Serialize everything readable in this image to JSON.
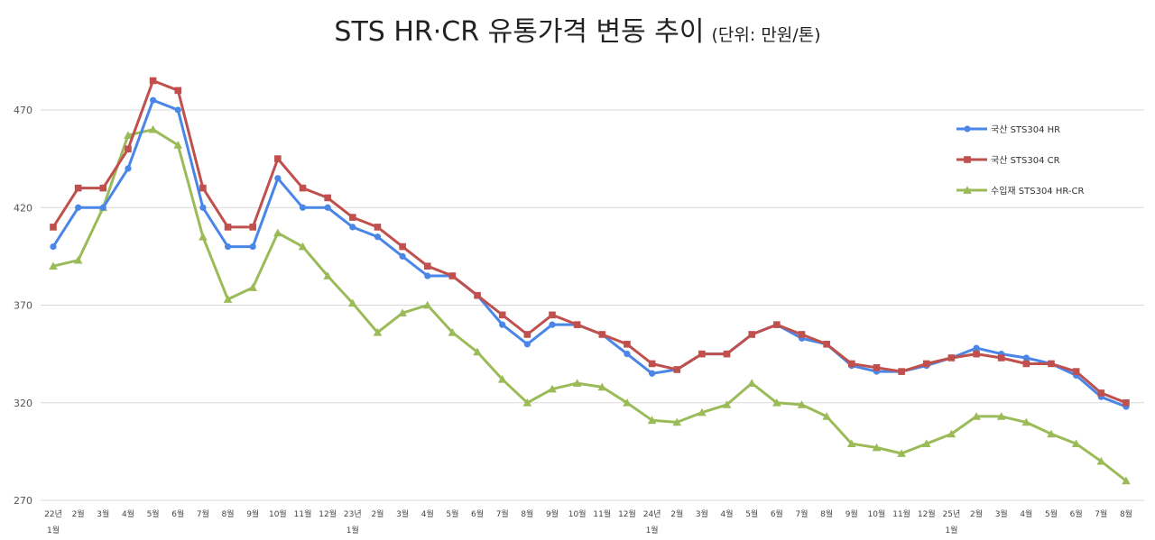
{
  "chart_data": {
    "type": "line",
    "title": "STS HR·CR 유통가격 변동 추이",
    "subtitle": "(단위: 만원/톤)",
    "ylim": [
      270,
      470
    ],
    "yticks": [
      270,
      320,
      370,
      420,
      470
    ],
    "grid": true,
    "legend_position": "right",
    "categories": [
      [
        "22년",
        "1월"
      ],
      [
        "2월"
      ],
      [
        "3월"
      ],
      [
        "4월"
      ],
      [
        "5월"
      ],
      [
        "6월"
      ],
      [
        "7월"
      ],
      [
        "8월"
      ],
      [
        "9월"
      ],
      [
        "10월"
      ],
      [
        "11월"
      ],
      [
        "12월"
      ],
      [
        "23년",
        "1월"
      ],
      [
        "2월"
      ],
      [
        "3월"
      ],
      [
        "4월"
      ],
      [
        "5월"
      ],
      [
        "6월"
      ],
      [
        "7월"
      ],
      [
        "8월"
      ],
      [
        "9월"
      ],
      [
        "10월"
      ],
      [
        "11월"
      ],
      [
        "12월"
      ],
      [
        "24년",
        "1월"
      ],
      [
        "2월"
      ],
      [
        "3월"
      ],
      [
        "4월"
      ],
      [
        "5월"
      ],
      [
        "6월"
      ],
      [
        "7월"
      ],
      [
        "8월"
      ],
      [
        "9월"
      ],
      [
        "10월"
      ],
      [
        "11월"
      ],
      [
        "12월"
      ],
      [
        "25년",
        "1월"
      ],
      [
        "2월"
      ],
      [
        "3월"
      ],
      [
        "4월"
      ],
      [
        "5월"
      ],
      [
        "6월"
      ],
      [
        "7월"
      ],
      [
        "8월"
      ]
    ],
    "series": [
      {
        "name": "국산 STS304 HR",
        "color": "#4a86e8",
        "marker": "circle",
        "values": [
          400,
          420,
          420,
          440,
          475,
          470,
          420,
          400,
          400,
          435,
          420,
          420,
          410,
          405,
          395,
          385,
          385,
          375,
          360,
          350,
          360,
          360,
          355,
          345,
          335,
          337,
          345,
          345,
          355,
          360,
          353,
          350,
          339,
          336,
          336,
          339,
          343,
          348,
          345,
          343,
          340,
          334,
          323,
          318
        ]
      },
      {
        "name": "국산 STS304 CR",
        "color": "#c0504d",
        "marker": "square",
        "values": [
          410,
          430,
          430,
          450,
          485,
          480,
          430,
          410,
          410,
          445,
          430,
          425,
          415,
          410,
          400,
          390,
          385,
          375,
          365,
          355,
          365,
          360,
          355,
          350,
          340,
          337,
          345,
          345,
          355,
          360,
          355,
          350,
          340,
          338,
          336,
          340,
          343,
          345,
          343,
          340,
          340,
          336,
          325,
          320
        ]
      },
      {
        "name": "수입재 STS304 HR-CR",
        "color": "#9bbb59",
        "marker": "triangle",
        "values": [
          390,
          393,
          420,
          457,
          460,
          452,
          405,
          373,
          379,
          407,
          400,
          385,
          371,
          356,
          366,
          370,
          356,
          346,
          332,
          320,
          327,
          330,
          328,
          320,
          311,
          310,
          315,
          319,
          330,
          320,
          319,
          313,
          299,
          297,
          294,
          299,
          304,
          313,
          313,
          310,
          304,
          299,
          290,
          280
        ]
      }
    ]
  }
}
